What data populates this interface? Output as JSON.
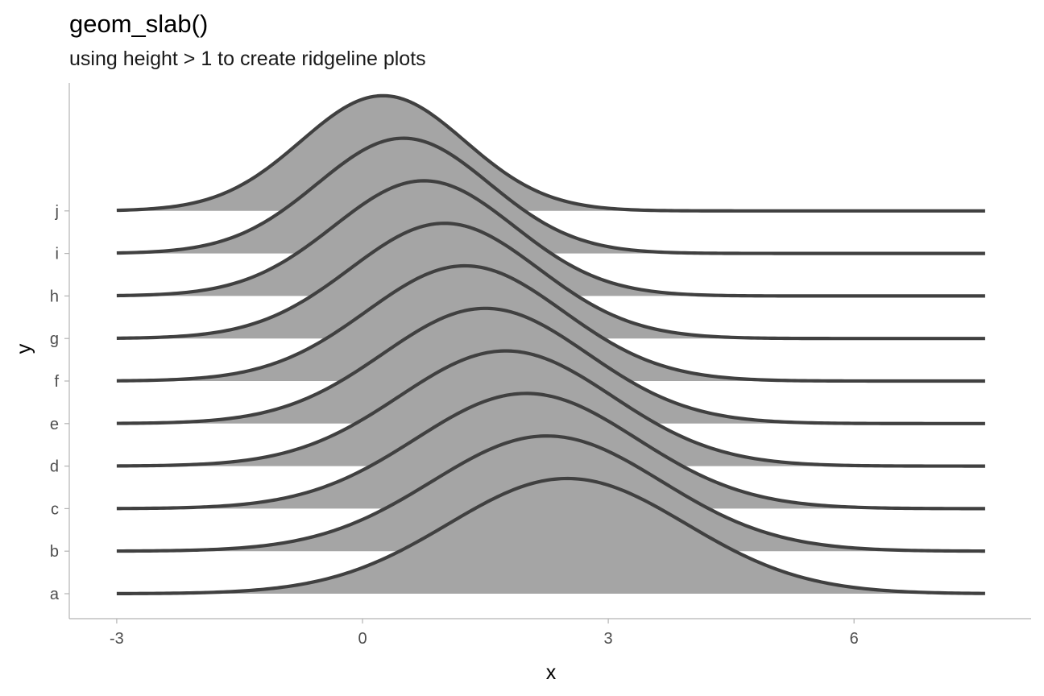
{
  "colors": {
    "background": "#ffffff",
    "slab_fill": "#a5a5a5",
    "slab_outline": "#404040",
    "axis_line": "#b3b3b3",
    "tick_text": "#4d4d4d"
  },
  "chart_data": {
    "type": "area",
    "geom": "slab (ridgeline, normal density outlines with grey fill)",
    "title": "geom_slab()",
    "subtitle": "using height > 1 to create ridgeline plots",
    "xlabel": "x",
    "ylabel": "y",
    "xlim": [
      -3,
      7.6
    ],
    "x_ticks": [
      -3,
      0,
      3,
      6
    ],
    "x_tick_labels": [
      "-3",
      "0",
      "3",
      "6"
    ],
    "y_categories": [
      "a",
      "b",
      "c",
      "d",
      "e",
      "f",
      "g",
      "h",
      "i",
      "j"
    ],
    "slab_height": 2.7,
    "grid": false,
    "legend": "none",
    "series": [
      {
        "category": "a",
        "mean": 2.5,
        "sd": 1.45
      },
      {
        "category": "b",
        "mean": 2.25,
        "sd": 1.4
      },
      {
        "category": "c",
        "mean": 2.0,
        "sd": 1.35
      },
      {
        "category": "d",
        "mean": 1.75,
        "sd": 1.3
      },
      {
        "category": "e",
        "mean": 1.5,
        "sd": 1.25
      },
      {
        "category": "f",
        "mean": 1.25,
        "sd": 1.2
      },
      {
        "category": "g",
        "mean": 1.0,
        "sd": 1.15
      },
      {
        "category": "h",
        "mean": 0.75,
        "sd": 1.1
      },
      {
        "category": "i",
        "mean": 0.5,
        "sd": 1.05
      },
      {
        "category": "j",
        "mean": 0.25,
        "sd": 1.0
      }
    ]
  }
}
